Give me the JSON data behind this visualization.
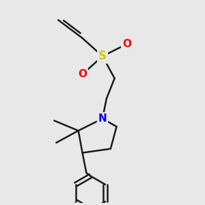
{
  "background_color": "#e8e8e8",
  "bond_color": "#1a1a1a",
  "N_color": "#0000ff",
  "S_color": "#cccc00",
  "O_color": "#ff0000",
  "line_width": 1.8,
  "figsize": [
    3.0,
    3.0
  ],
  "dpi": 100,
  "xlim": [
    0.0,
    1.0
  ],
  "ylim": [
    0.0,
    1.0
  ]
}
